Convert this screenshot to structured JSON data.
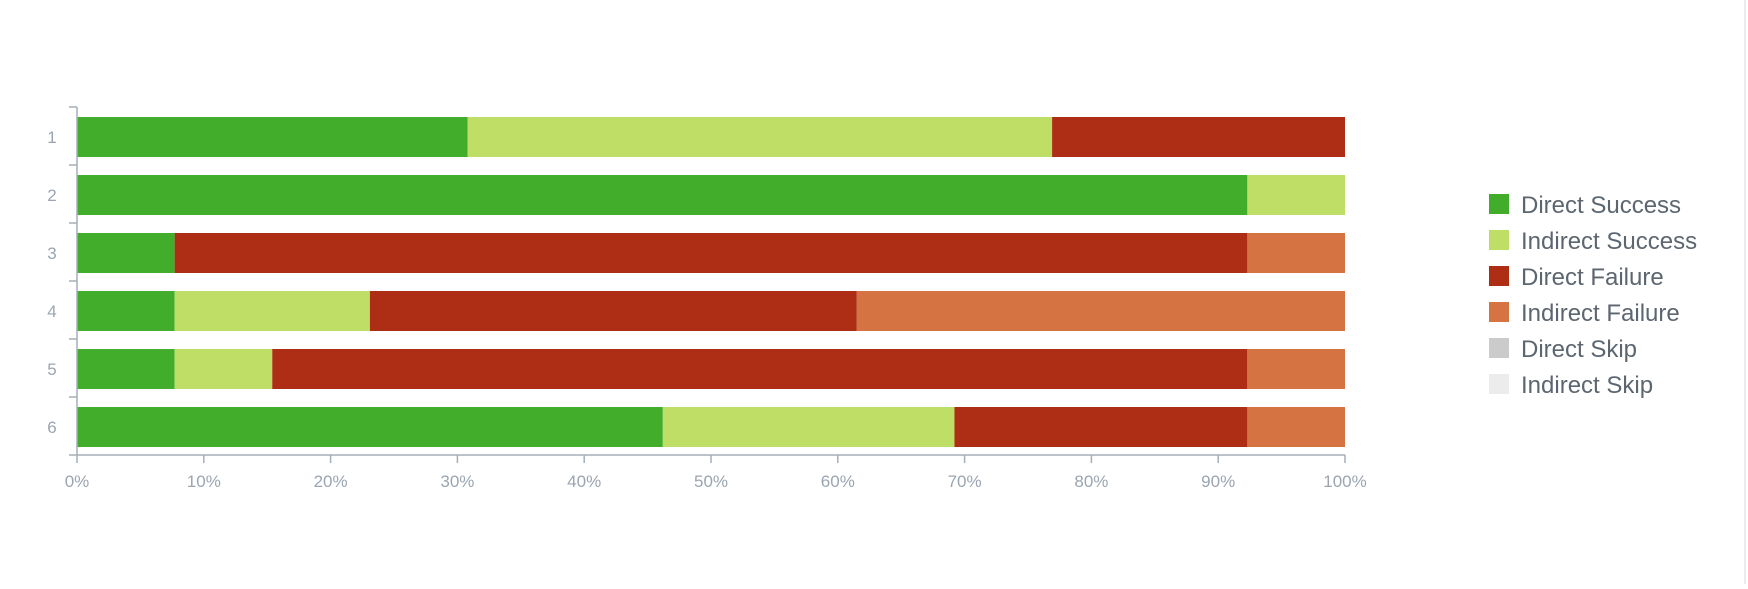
{
  "chart_data": {
    "type": "bar",
    "orientation": "horizontal",
    "stacked": true,
    "title": "",
    "xlabel": "",
    "ylabel": "",
    "categories": [
      "1",
      "2",
      "3",
      "4",
      "5",
      "6"
    ],
    "xlim": [
      0,
      100
    ],
    "x_ticks": [
      "0%",
      "10%",
      "20%",
      "30%",
      "40%",
      "50%",
      "60%",
      "70%",
      "80%",
      "90%",
      "100%"
    ],
    "grid": false,
    "legend_position": "right",
    "series": [
      {
        "name": "Direct Success",
        "color": "#41ad2a",
        "values": [
          30.8,
          92.3,
          7.7,
          7.7,
          7.7,
          46.2
        ]
      },
      {
        "name": "Indirect Success",
        "color": "#bfde66",
        "values": [
          46.1,
          7.7,
          0,
          15.4,
          7.7,
          23.0
        ]
      },
      {
        "name": "Direct Failure",
        "color": "#ad2d15",
        "values": [
          23.1,
          0,
          84.6,
          38.4,
          76.9,
          23.1
        ]
      },
      {
        "name": "Indirect Failure",
        "color": "#d57442",
        "values": [
          0,
          0,
          7.7,
          38.5,
          7.7,
          7.7
        ]
      },
      {
        "name": "Direct Skip",
        "color": "#cbcbcb",
        "values": [
          0,
          0,
          0,
          0,
          0,
          0
        ]
      },
      {
        "name": "Indirect Skip",
        "color": "#ececec",
        "values": [
          0,
          0,
          0,
          0,
          0,
          0
        ]
      }
    ]
  }
}
